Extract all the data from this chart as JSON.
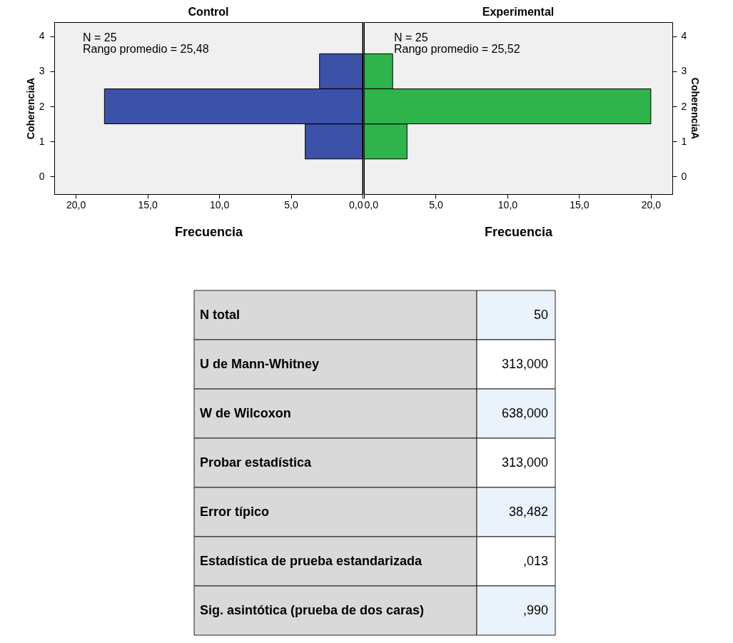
{
  "chart_data": [
    {
      "type": "bar",
      "orientation": "horizontal",
      "title": "Control",
      "xlabel": "Frecuencia",
      "ylabel": "CoherenciaA",
      "x": [
        1,
        2,
        3
      ],
      "series": [
        {
          "color": "#3b52a8",
          "values": [
            4,
            18,
            3
          ]
        }
      ],
      "xlim": [
        21.5,
        0
      ],
      "xticks": [
        {
          "value": 20,
          "label": "20,0"
        },
        {
          "value": 15,
          "label": "15,0"
        },
        {
          "value": 10,
          "label": "10,0"
        },
        {
          "value": 5,
          "label": "5,0"
        },
        {
          "value": 0,
          "label": "0,0"
        }
      ],
      "ylim": [
        -0.5,
        4.4
      ],
      "yticks": [
        0,
        1,
        2,
        3,
        4
      ],
      "annotations": [
        "N = 25",
        "Rango promedio = 25,48"
      ]
    },
    {
      "type": "bar",
      "orientation": "horizontal",
      "title": "Experimental",
      "xlabel": "Frecuencia",
      "ylabel": "CoherenciaA",
      "x": [
        1,
        2,
        3
      ],
      "series": [
        {
          "color": "#2fb34b",
          "values": [
            3,
            20,
            2
          ]
        }
      ],
      "xlim": [
        0,
        21.5
      ],
      "xticks": [
        {
          "value": 0,
          "label": "0,0"
        },
        {
          "value": 5,
          "label": "5,0"
        },
        {
          "value": 10,
          "label": "10,0"
        },
        {
          "value": 15,
          "label": "15,0"
        },
        {
          "value": 20,
          "label": "20,0"
        }
      ],
      "ylim": [
        -0.5,
        4.4
      ],
      "yticks": [
        0,
        1,
        2,
        3,
        4
      ],
      "annotations": [
        "N = 25",
        "Rango promedio = 25,52"
      ]
    },
    {
      "type": "other",
      "annotations": [
        "N total",
        "50",
        "U de Mann-Whitney",
        "313,000",
        "W de Wilcoxon",
        "638,000",
        "Probar estadística",
        "313,000",
        "Error típico",
        "38,482",
        "Estadística de prueba estandarizada",
        ",013",
        "Sig. asintótica (prueba de dos caras)",
        ",990"
      ]
    }
  ]
}
